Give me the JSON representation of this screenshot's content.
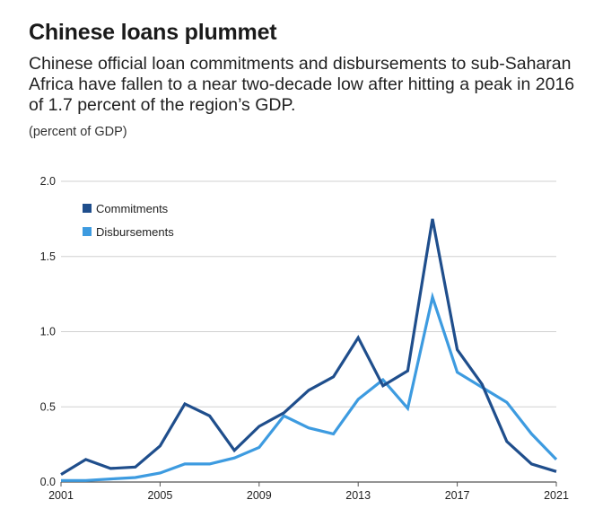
{
  "header": {
    "title": "Chinese loans plummet",
    "subtitle": "Chinese official loan commitments and disbursements to sub-Saharan Africa have fallen to a near two-decade low after hitting a peak in 2016 of 1.7 percent of the region’s GDP.",
    "unit_label": "(percent of GDP)"
  },
  "chart_data": {
    "type": "line",
    "x": [
      2001,
      2002,
      2003,
      2004,
      2005,
      2006,
      2007,
      2008,
      2009,
      2010,
      2011,
      2012,
      2013,
      2014,
      2015,
      2016,
      2017,
      2018,
      2019,
      2020,
      2021
    ],
    "xticks": [
      "2001",
      "2005",
      "2009",
      "2013",
      "2017",
      "2021"
    ],
    "yticks": [
      "0.0",
      "0.5",
      "1.0",
      "1.5",
      "2.0"
    ],
    "ylim": [
      0,
      2.0
    ],
    "xlim": [
      2001,
      2021
    ],
    "grid": "horizontal",
    "legend_position": "top-left",
    "series": [
      {
        "name": "Commitments",
        "color": "#1f4e8c",
        "values": [
          0.05,
          0.15,
          0.09,
          0.1,
          0.24,
          0.52,
          0.44,
          0.21,
          0.37,
          0.46,
          0.61,
          0.7,
          0.96,
          0.64,
          0.74,
          1.75,
          0.88,
          0.65,
          0.27,
          0.12,
          0.07
        ]
      },
      {
        "name": "Disbursements",
        "color": "#3d9be0",
        "values": [
          0.01,
          0.01,
          0.02,
          0.03,
          0.06,
          0.12,
          0.12,
          0.16,
          0.23,
          0.44,
          0.36,
          0.32,
          0.55,
          0.68,
          0.49,
          1.23,
          0.73,
          0.63,
          0.53,
          0.32,
          0.15
        ]
      }
    ]
  }
}
